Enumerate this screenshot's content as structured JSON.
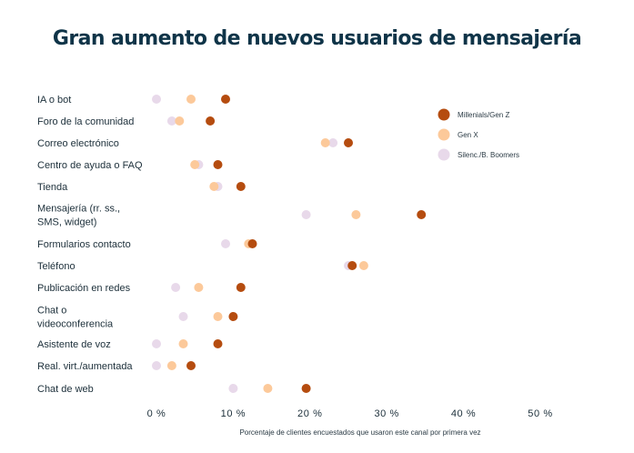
{
  "chart_data": {
    "type": "scatter",
    "title": "Gran aumento de nuevos usuarios de mensajería",
    "xlabel": "Porcentaje de clientes encuestados que usaron este canal por primera vez",
    "ylabel": "",
    "xlim": [
      0,
      50
    ],
    "x_ticks": [
      "0 %",
      "10 %",
      "20 %",
      "30 %",
      "40 %",
      "50 %"
    ],
    "grid": false,
    "legend_position": "top-right",
    "categories": [
      [
        "IA o bot"
      ],
      [
        "Foro de la comunidad"
      ],
      [
        "Correo electrónico"
      ],
      [
        "Centro de ayuda o FAQ"
      ],
      [
        "Tienda"
      ],
      [
        "Mensajería (rr. ss.,",
        "SMS, widget)"
      ],
      [
        "Formularios contacto"
      ],
      [
        "Teléfono"
      ],
      [
        "Publicación en redes"
      ],
      [
        "Chat o",
        "videoconferencia"
      ],
      [
        "Asistente de voz"
      ],
      [
        "Real. virt./aumentada"
      ],
      [
        "Chat de web"
      ]
    ],
    "series": [
      {
        "name": "Silenc./B. Boomers",
        "color": "#e8d9ea",
        "values": [
          0,
          2,
          23,
          5.5,
          8,
          19.5,
          9,
          25,
          2.5,
          3.5,
          0,
          0,
          10
        ]
      },
      {
        "name": "Gen X",
        "color": "#fcc99a",
        "values": [
          4.5,
          3,
          22,
          5,
          7.5,
          26,
          12,
          27,
          5.5,
          8,
          3.5,
          2,
          14.5
        ]
      },
      {
        "name": "Millenials/Gen Z",
        "color": "#b54c0f",
        "values": [
          9,
          7,
          25,
          8,
          11,
          34.5,
          12.5,
          25.5,
          11,
          10,
          8,
          4.5,
          19.5
        ]
      }
    ]
  }
}
